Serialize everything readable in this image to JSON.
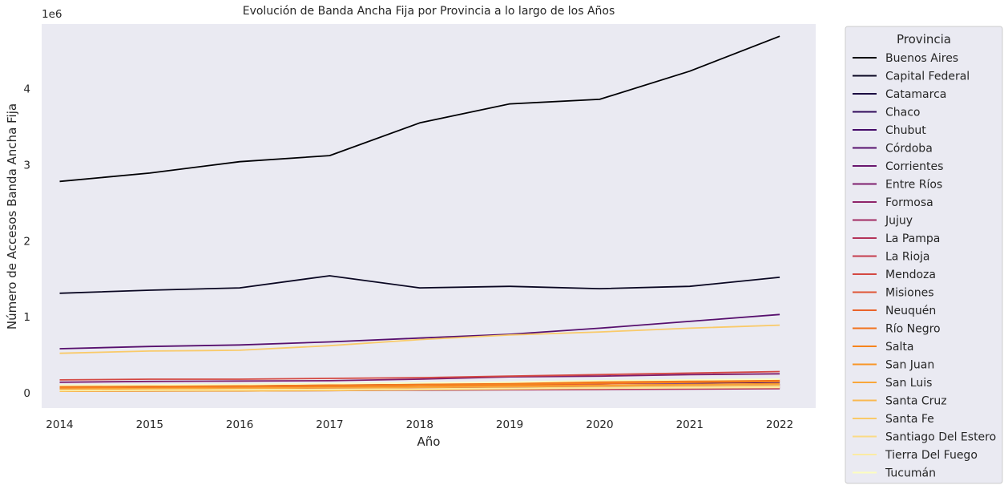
{
  "chart_data": {
    "type": "line",
    "title": "Evolución de Banda Ancha Fija por Provincia a lo largo de los Años",
    "xlabel": "Año",
    "ylabel": "Número de Accesos Banda Ancha Fija",
    "y_scale_label": "1e6",
    "x": [
      2014,
      2015,
      2016,
      2017,
      2018,
      2019,
      2020,
      2021,
      2022
    ],
    "xlim": [
      2013.8,
      2022.4
    ],
    "ylim": [
      -0.2,
      4.85
    ],
    "yticks": [
      0,
      1,
      2,
      3,
      4
    ],
    "grid": false,
    "legend_title": "Provincia",
    "legend_position": "right-outside",
    "series": [
      {
        "name": "Buenos Aires",
        "color": "#000004",
        "values": [
          2.78,
          2.89,
          3.04,
          3.12,
          3.55,
          3.8,
          3.86,
          4.23,
          4.69
        ]
      },
      {
        "name": "Capital Federal",
        "color": "#0a0722",
        "values": [
          1.31,
          1.35,
          1.38,
          1.54,
          1.38,
          1.4,
          1.37,
          1.4,
          1.52
        ]
      },
      {
        "name": "Catamarca",
        "color": "#1b0c41",
        "values": [
          0.03,
          0.035,
          0.04,
          0.045,
          0.05,
          0.055,
          0.06,
          0.065,
          0.07
        ]
      },
      {
        "name": "Chaco",
        "color": "#300a5b",
        "values": [
          0.06,
          0.065,
          0.07,
          0.075,
          0.08,
          0.09,
          0.1,
          0.105,
          0.11
        ]
      },
      {
        "name": "Chubut",
        "color": "#450a69",
        "values": [
          0.08,
          0.085,
          0.09,
          0.1,
          0.11,
          0.12,
          0.125,
          0.13,
          0.14
        ]
      },
      {
        "name": "Córdoba",
        "color": "#57106e",
        "values": [
          0.58,
          0.61,
          0.63,
          0.67,
          0.72,
          0.77,
          0.85,
          0.94,
          1.03
        ]
      },
      {
        "name": "Corrientes",
        "color": "#6a176e",
        "values": [
          0.05,
          0.055,
          0.06,
          0.065,
          0.07,
          0.08,
          0.09,
          0.1,
          0.11
        ]
      },
      {
        "name": "Entre Ríos",
        "color": "#7d1e6d",
        "values": [
          0.14,
          0.15,
          0.155,
          0.16,
          0.18,
          0.21,
          0.22,
          0.24,
          0.25
        ]
      },
      {
        "name": "Formosa",
        "color": "#8f2469",
        "values": [
          0.02,
          0.022,
          0.025,
          0.03,
          0.035,
          0.04,
          0.045,
          0.05,
          0.055
        ]
      },
      {
        "name": "Jujuy",
        "color": "#a22b62",
        "values": [
          0.04,
          0.045,
          0.05,
          0.055,
          0.06,
          0.07,
          0.08,
          0.085,
          0.09
        ]
      },
      {
        "name": "La Pampa",
        "color": "#b43359",
        "values": [
          0.06,
          0.065,
          0.07,
          0.075,
          0.08,
          0.085,
          0.09,
          0.095,
          0.1
        ]
      },
      {
        "name": "La Rioja",
        "color": "#c53c4d",
        "values": [
          0.02,
          0.025,
          0.03,
          0.035,
          0.04,
          0.045,
          0.05,
          0.055,
          0.06
        ]
      },
      {
        "name": "Mendoza",
        "color": "#d44842",
        "values": [
          0.17,
          0.18,
          0.18,
          0.19,
          0.2,
          0.22,
          0.24,
          0.26,
          0.28
        ]
      },
      {
        "name": "Misiones",
        "color": "#e05536",
        "values": [
          0.05,
          0.055,
          0.06,
          0.07,
          0.08,
          0.1,
          0.12,
          0.14,
          0.15
        ]
      },
      {
        "name": "Neuquén",
        "color": "#ea632a",
        "values": [
          0.08,
          0.085,
          0.09,
          0.1,
          0.11,
          0.13,
          0.15,
          0.16,
          0.17
        ]
      },
      {
        "name": "Río Negro",
        "color": "#f1731d",
        "values": [
          0.08,
          0.085,
          0.09,
          0.1,
          0.11,
          0.12,
          0.14,
          0.15,
          0.16
        ]
      },
      {
        "name": "Salta",
        "color": "#f6841d",
        "values": [
          0.07,
          0.075,
          0.08,
          0.09,
          0.1,
          0.11,
          0.13,
          0.14,
          0.15
        ]
      },
      {
        "name": "San Juan",
        "color": "#f89527",
        "values": [
          0.05,
          0.055,
          0.06,
          0.07,
          0.08,
          0.09,
          0.1,
          0.11,
          0.12
        ]
      },
      {
        "name": "San Luis",
        "color": "#f9a73a",
        "values": [
          0.05,
          0.055,
          0.06,
          0.065,
          0.07,
          0.08,
          0.09,
          0.1,
          0.11
        ]
      },
      {
        "name": "Santa Cruz",
        "color": "#f9b951",
        "values": [
          0.02,
          0.022,
          0.025,
          0.03,
          0.04,
          0.05,
          0.06,
          0.07,
          0.08
        ]
      },
      {
        "name": "Santa Fe",
        "color": "#f9ca69",
        "values": [
          0.52,
          0.55,
          0.56,
          0.62,
          0.7,
          0.76,
          0.8,
          0.85,
          0.89
        ]
      },
      {
        "name": "Santiago Del Estero",
        "color": "#fadb85",
        "values": [
          0.03,
          0.035,
          0.04,
          0.045,
          0.05,
          0.06,
          0.07,
          0.08,
          0.09
        ]
      },
      {
        "name": "Tierra Del Fuego",
        "color": "#fbeba3",
        "values": [
          0.03,
          0.035,
          0.04,
          0.045,
          0.05,
          0.055,
          0.06,
          0.065,
          0.07
        ]
      },
      {
        "name": "Tucumán",
        "color": "#fcfdbf",
        "values": [
          0.1,
          0.105,
          0.11,
          0.12,
          0.13,
          0.14,
          0.16,
          0.17,
          0.18
        ]
      }
    ]
  }
}
